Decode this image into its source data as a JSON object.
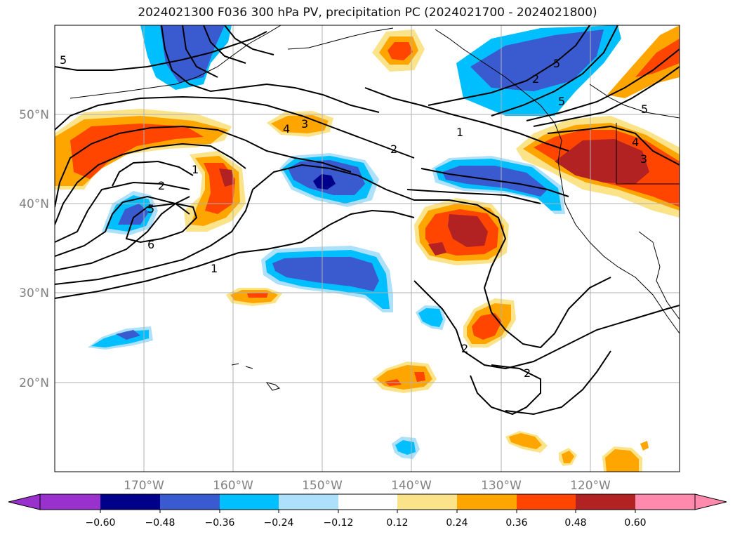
{
  "title": "2024021300 F036 300 hPa PV, precipitation PC (2024021700 - 2024021800)",
  "lat_labels": [
    "50°N",
    "40°N",
    "30°N",
    "20°N"
  ],
  "lon_labels": [
    "170°W",
    "160°W",
    "150°W",
    "140°W",
    "130°W",
    "120°W"
  ],
  "contour_labels": [
    "5",
    "1",
    "2",
    "5",
    "6",
    "1",
    "4",
    "3",
    "2",
    "1",
    "2",
    "5",
    "5",
    "4",
    "3",
    "2",
    "2",
    "5"
  ],
  "colorbar": {
    "ticks": [
      "−0.60",
      "−0.48",
      "−0.36",
      "−0.24",
      "−0.12",
      "0.12",
      "0.24",
      "0.36",
      "0.48",
      "0.60"
    ],
    "colors": [
      "#9932CC",
      "#00008B",
      "#3A5BCF",
      "#00BFFF",
      "#ADE0FA",
      "#FFFFFF",
      "#FBE38A",
      "#FFA500",
      "#FF4500",
      "#B22222",
      "#FF8AAE"
    ]
  },
  "palette": {
    "c_blue_mid": "#3A5BCF",
    "c_blue_light": "#00BFFF",
    "c_blue_pale": "#ADE0FA",
    "c_navy": "#00008B",
    "c_yellow": "#FBE38A",
    "c_orange": "#FFA500",
    "c_red_orange": "#FF4500",
    "c_brick": "#B22222"
  }
}
